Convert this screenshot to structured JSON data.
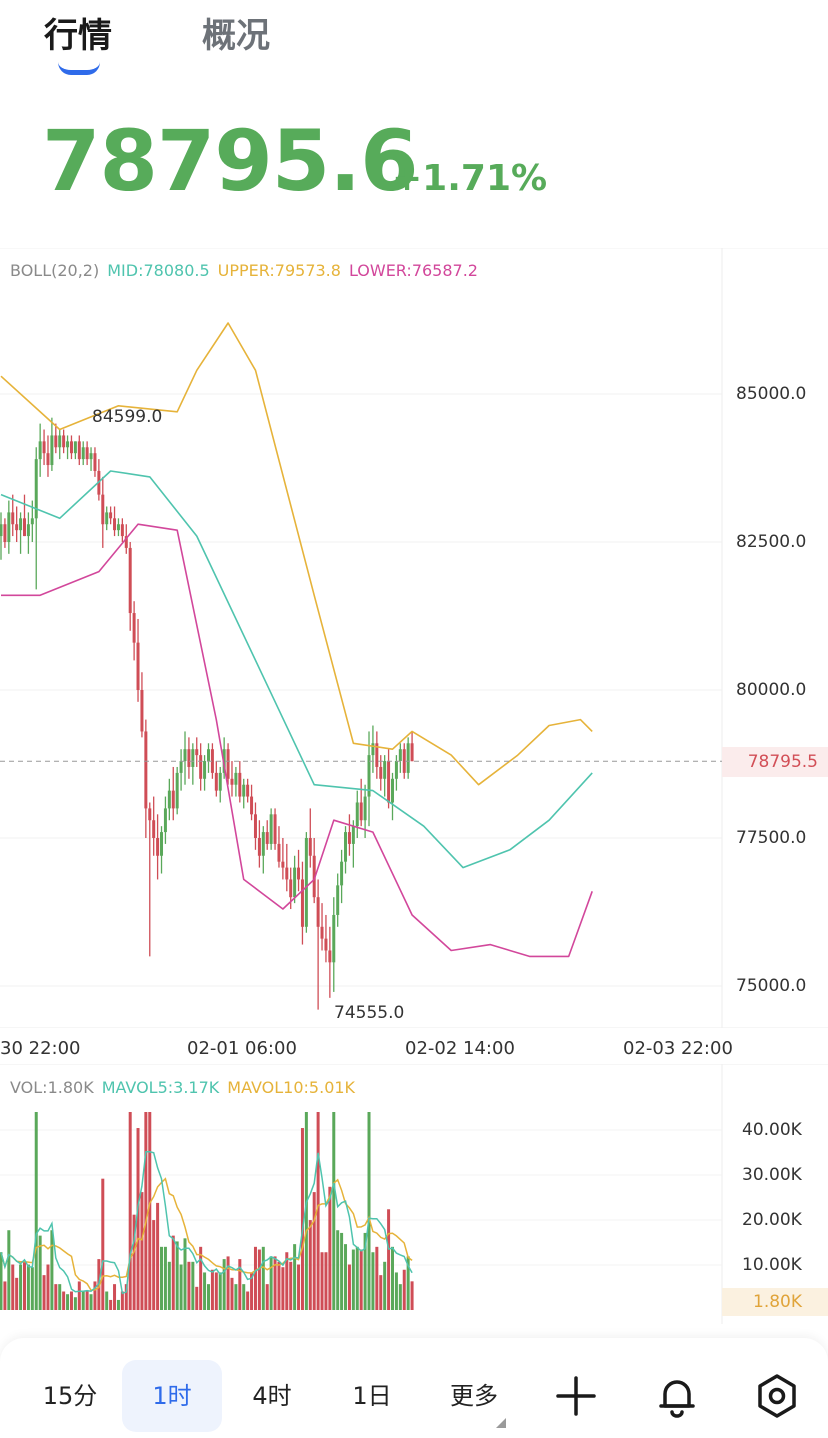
{
  "tabs": [
    {
      "label": "行情",
      "active": true
    },
    {
      "label": "概况",
      "active": false
    }
  ],
  "price": {
    "value": "78795.6",
    "change": "+1.71%",
    "color": "#57ab5a"
  },
  "boll": {
    "name": "BOLL(20,2)",
    "mid": "MID:78080.5",
    "upper": "UPPER:79573.8",
    "lower": "LOWER:76587.2",
    "colors": {
      "mid": "#4fc4ae",
      "upper": "#e6b33a",
      "lower": "#d2479b"
    }
  },
  "price_axis": [
    "85000.0",
    "82500.0",
    "80000.0",
    "77500.0",
    "75000.0"
  ],
  "current_price_tag": "78795.5",
  "annotations": {
    "high": "84599.0",
    "low": "74555.0"
  },
  "x_axis": [
    "30 22:00",
    "02-01 06:00",
    "02-02 14:00",
    "02-03 22:00"
  ],
  "vol": {
    "name": "VOL:1.80K",
    "mavol5": "MAVOL5:3.17K",
    "mavol10": "MAVOL10:5.01K",
    "axis": [
      "40.00K",
      "30.00K",
      "20.00K",
      "10.00K"
    ],
    "current_tag": "1.80K"
  },
  "bottom_bar": {
    "intervals": [
      {
        "label": "15分",
        "active": false
      },
      {
        "label": "1时",
        "active": true
      },
      {
        "label": "4时",
        "active": false
      },
      {
        "label": "1日",
        "active": false
      },
      {
        "label": "更多",
        "active": false
      }
    ],
    "icons": [
      "plus-icon",
      "bell-icon",
      "gear-icon"
    ]
  },
  "chart_data": {
    "type": "candlestick",
    "interval": "1时",
    "ylim": [
      74400,
      86500
    ],
    "y_ticks": [
      85000,
      82500,
      80000,
      77500,
      75000
    ],
    "current_price": 78795.5,
    "high_label": 84599.0,
    "low_label": 74555.0,
    "candles": [
      [
        82600,
        83000,
        82200,
        82800
      ],
      [
        82800,
        82900,
        82400,
        82500
      ],
      [
        82500,
        83200,
        82300,
        83000
      ],
      [
        83000,
        83300,
        82600,
        82800
      ],
      [
        82800,
        83100,
        82500,
        82700
      ],
      [
        82700,
        83000,
        82300,
        82900
      ],
      [
        82900,
        83300,
        82600,
        82600
      ],
      [
        82600,
        83000,
        82300,
        82800
      ],
      [
        82800,
        83200,
        82500,
        82900
      ],
      [
        82900,
        84100,
        81700,
        83900
      ],
      [
        83900,
        84500,
        83600,
        84200
      ],
      [
        84200,
        84400,
        83800,
        84000
      ],
      [
        84000,
        84300,
        83600,
        83800
      ],
      [
        83800,
        84600,
        83700,
        84300
      ],
      [
        84300,
        84500,
        84000,
        84100
      ],
      [
        84100,
        84400,
        83900,
        84300
      ],
      [
        84300,
        84400,
        84000,
        84100
      ],
      [
        84100,
        84300,
        83900,
        84200
      ],
      [
        84200,
        84300,
        83900,
        84000
      ],
      [
        84000,
        84200,
        83900,
        84200
      ],
      [
        84200,
        84300,
        83800,
        83900
      ],
      [
        83900,
        84200,
        83800,
        84100
      ],
      [
        84100,
        84200,
        83800,
        83900
      ],
      [
        83900,
        84100,
        83700,
        84000
      ],
      [
        84000,
        84100,
        83600,
        83700
      ],
      [
        83700,
        83900,
        83200,
        83300
      ],
      [
        83300,
        83600,
        82400,
        82800
      ],
      [
        82800,
        83100,
        82700,
        83000
      ],
      [
        83000,
        83100,
        82800,
        82900
      ],
      [
        82900,
        83100,
        82600,
        82700
      ],
      [
        82700,
        82900,
        82600,
        82800
      ],
      [
        82800,
        82900,
        82500,
        82600
      ],
      [
        82600,
        82800,
        82300,
        82400
      ],
      [
        82400,
        82500,
        81000,
        81300
      ],
      [
        81300,
        81500,
        80500,
        80800
      ],
      [
        80800,
        81200,
        79800,
        80000
      ],
      [
        80000,
        80300,
        79200,
        79300
      ],
      [
        79300,
        79500,
        77500,
        78000
      ],
      [
        78000,
        78100,
        75500,
        77800
      ],
      [
        77800,
        78200,
        77200,
        77500
      ],
      [
        77500,
        77900,
        76800,
        77200
      ],
      [
        77200,
        77700,
        76900,
        77600
      ],
      [
        77600,
        78200,
        77400,
        78000
      ],
      [
        78000,
        78500,
        77800,
        78300
      ],
      [
        78300,
        78700,
        77800,
        78000
      ],
      [
        78000,
        78700,
        77900,
        78600
      ],
      [
        78600,
        79000,
        78300,
        78800
      ],
      [
        78800,
        79300,
        78400,
        79000
      ],
      [
        79000,
        79200,
        78500,
        78700
      ],
      [
        78700,
        79100,
        78400,
        79000
      ],
      [
        79000,
        79200,
        78700,
        78900
      ],
      [
        78900,
        79100,
        78300,
        78500
      ],
      [
        78500,
        78900,
        78300,
        78800
      ],
      [
        78800,
        79100,
        78600,
        79000
      ],
      [
        79000,
        79100,
        78500,
        78600
      ],
      [
        78600,
        78800,
        78200,
        78300
      ],
      [
        78300,
        78700,
        78100,
        78600
      ],
      [
        78600,
        79200,
        78500,
        79000
      ],
      [
        79000,
        79100,
        78400,
        78500
      ],
      [
        78500,
        78800,
        78200,
        78400
      ],
      [
        78400,
        78700,
        78200,
        78600
      ],
      [
        78600,
        78800,
        78100,
        78200
      ],
      [
        78200,
        78500,
        78000,
        78400
      ],
      [
        78400,
        78500,
        78100,
        78200
      ],
      [
        78200,
        78400,
        77800,
        77900
      ],
      [
        77900,
        78100,
        77300,
        77500
      ],
      [
        77500,
        77800,
        77000,
        77200
      ],
      [
        77200,
        77700,
        76900,
        77600
      ],
      [
        77600,
        77800,
        77300,
        77400
      ],
      [
        77400,
        78000,
        77300,
        77900
      ],
      [
        77900,
        78000,
        77300,
        77400
      ],
      [
        77400,
        77700,
        77000,
        77100
      ],
      [
        77100,
        77500,
        76800,
        77000
      ],
      [
        77000,
        77400,
        76600,
        76800
      ],
      [
        76800,
        77000,
        76300,
        76500
      ],
      [
        76500,
        77200,
        76400,
        77000
      ],
      [
        77000,
        77300,
        76600,
        76800
      ],
      [
        76800,
        77100,
        75700,
        76000
      ],
      [
        76000,
        77600,
        75900,
        77500
      ],
      [
        77500,
        78000,
        77000,
        77200
      ],
      [
        77200,
        77500,
        76400,
        76500
      ],
      [
        76500,
        76800,
        74600,
        76000
      ],
      [
        76000,
        76400,
        75600,
        75800
      ],
      [
        75800,
        76200,
        75400,
        75600
      ],
      [
        75600,
        76000,
        74800,
        75400
      ],
      [
        75400,
        76500,
        74900,
        76200
      ],
      [
        76200,
        76900,
        76000,
        76700
      ],
      [
        76700,
        77300,
        76400,
        77100
      ],
      [
        77100,
        77700,
        76900,
        77600
      ],
      [
        77600,
        77900,
        77200,
        77400
      ],
      [
        77400,
        77800,
        77000,
        77700
      ],
      [
        77700,
        78300,
        77500,
        78100
      ],
      [
        78100,
        78500,
        77700,
        77800
      ],
      [
        77800,
        78400,
        77500,
        78200
      ],
      [
        78200,
        79300,
        77700,
        78900
      ],
      [
        78900,
        79400,
        78600,
        79100
      ],
      [
        79100,
        79300,
        78500,
        78700
      ],
      [
        78700,
        78900,
        78300,
        78500
      ],
      [
        78500,
        78900,
        78200,
        78800
      ],
      [
        78800,
        79000,
        78000,
        78100
      ],
      [
        78100,
        78600,
        77800,
        78500
      ],
      [
        78500,
        78900,
        78300,
        78800
      ],
      [
        78800,
        79100,
        78600,
        79000
      ],
      [
        79000,
        79100,
        78500,
        78600
      ],
      [
        78600,
        79200,
        78500,
        79100
      ],
      [
        79100,
        79300,
        78800,
        78796
      ]
    ],
    "boll_upper": [
      [
        0,
        85300
      ],
      [
        15,
        84400
      ],
      [
        30,
        84800
      ],
      [
        45,
        84700
      ],
      [
        50,
        85400
      ],
      [
        58,
        86200
      ],
      [
        65,
        85400
      ],
      [
        80,
        81600
      ],
      [
        90,
        79100
      ],
      [
        100,
        79000
      ],
      [
        105,
        79300
      ],
      [
        115,
        78900
      ],
      [
        122,
        78400
      ],
      [
        132,
        78900
      ],
      [
        140,
        79400
      ],
      [
        148,
        79500
      ],
      [
        151,
        79300
      ]
    ],
    "boll_mid": [
      [
        0,
        83300
      ],
      [
        15,
        82900
      ],
      [
        28,
        83700
      ],
      [
        38,
        83600
      ],
      [
        50,
        82600
      ],
      [
        70,
        79800
      ],
      [
        80,
        78400
      ],
      [
        95,
        78300
      ],
      [
        108,
        77700
      ],
      [
        118,
        77000
      ],
      [
        130,
        77300
      ],
      [
        140,
        77800
      ],
      [
        151,
        78600
      ]
    ],
    "boll_lower": [
      [
        0,
        81600
      ],
      [
        10,
        81600
      ],
      [
        25,
        82000
      ],
      [
        35,
        82800
      ],
      [
        45,
        82700
      ],
      [
        55,
        79500
      ],
      [
        62,
        76800
      ],
      [
        72,
        76300
      ],
      [
        80,
        76800
      ],
      [
        85,
        77800
      ],
      [
        95,
        77600
      ],
      [
        105,
        76200
      ],
      [
        115,
        75600
      ],
      [
        125,
        75700
      ],
      [
        135,
        75500
      ],
      [
        145,
        75500
      ],
      [
        151,
        76600
      ]
    ],
    "volume": {
      "ylim": [
        0,
        46000
      ],
      "y_ticks": [
        40000,
        30000,
        20000,
        10000
      ],
      "current": 1800,
      "mavol5": 3170,
      "mavol10": 5010
    }
  }
}
